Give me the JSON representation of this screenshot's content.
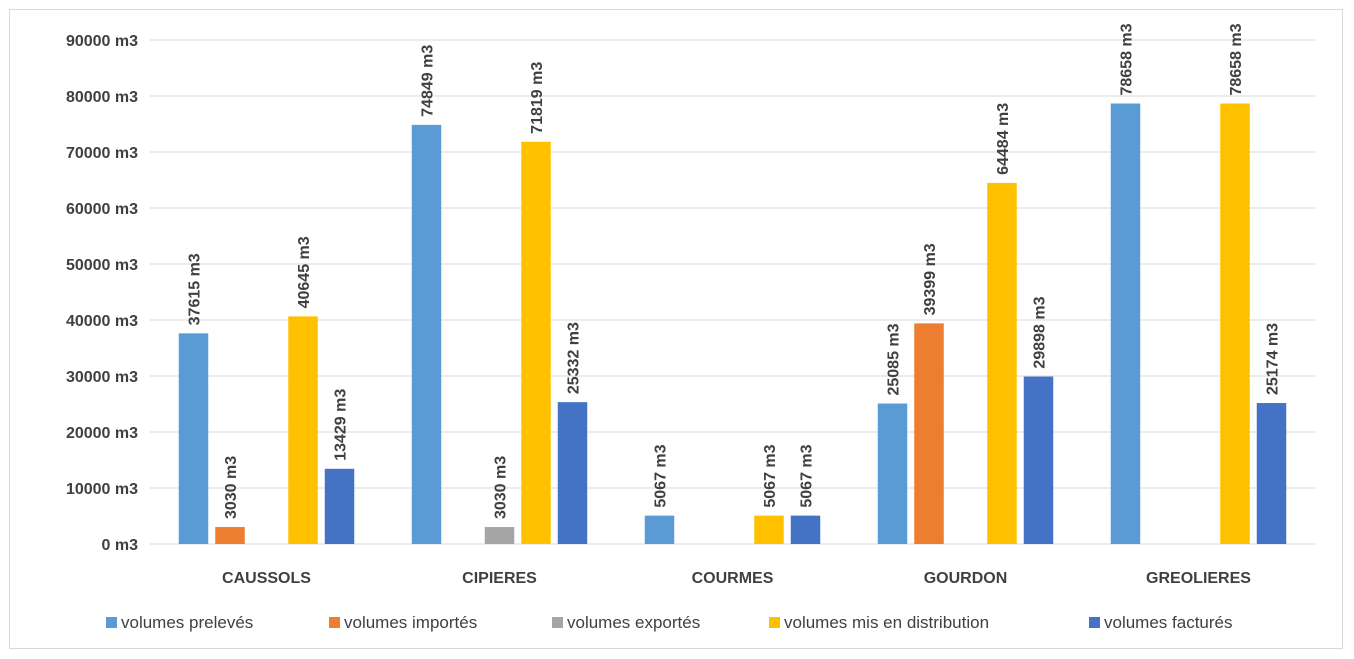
{
  "chart_data": {
    "type": "bar",
    "categories": [
      "CAUSSOLS",
      "CIPIERES",
      "COURMES",
      "GOURDON",
      "GREOLIERES"
    ],
    "series": [
      {
        "name": "volumes prelevés",
        "color": "#5b9bd5",
        "values": [
          37615,
          74849,
          5067,
          25085,
          78658
        ],
        "labels": [
          "37615 m3",
          "74849 m3",
          "5067 m3",
          "25085 m3",
          "78658 m3"
        ]
      },
      {
        "name": "volumes importés",
        "color": "#ed7d31",
        "values": [
          3030,
          null,
          null,
          39399,
          null
        ],
        "labels": [
          "3030 m3",
          null,
          null,
          "39399 m3",
          null
        ]
      },
      {
        "name": "volumes exportés",
        "color": "#a5a5a5",
        "values": [
          null,
          3030,
          null,
          null,
          null
        ],
        "labels": [
          null,
          "3030 m3",
          null,
          null,
          null
        ]
      },
      {
        "name": "volumes mis en distribution",
        "color": "#ffc000",
        "values": [
          40645,
          71819,
          5067,
          64484,
          78658
        ],
        "labels": [
          "40645 m3",
          "71819 m3",
          "5067 m3",
          "64484 m3",
          "78658 m3"
        ]
      },
      {
        "name": "volumes facturés",
        "color": "#4472c4",
        "values": [
          13429,
          25332,
          5067,
          29898,
          25174
        ],
        "labels": [
          "13429 m3",
          "25332 m3",
          "5067 m3",
          "29898 m3",
          "25174 m3"
        ]
      }
    ],
    "ylim": [
      0,
      90000
    ],
    "yticks": [
      0,
      10000,
      20000,
      30000,
      40000,
      50000,
      60000,
      70000,
      80000,
      90000
    ],
    "ytick_labels": [
      "0 m3",
      "10000 m3",
      "20000 m3",
      "30000 m3",
      "40000 m3",
      "50000 m3",
      "60000 m3",
      "70000 m3",
      "80000 m3",
      "90000 m3"
    ],
    "gridlines": true,
    "gridline_color": "#d9d9d9",
    "legend_position": "bottom",
    "title": "",
    "xlabel": "",
    "ylabel": ""
  }
}
